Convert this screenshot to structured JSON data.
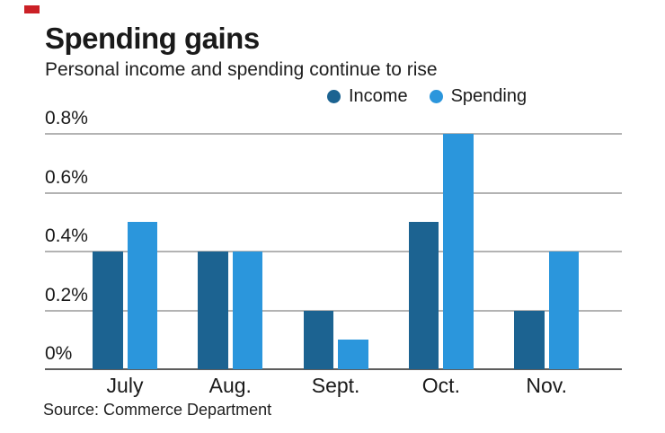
{
  "brand": {
    "accent_color": "#cb2026"
  },
  "header": {
    "title": "Spending gains",
    "subtitle": "Personal income and spending continue to rise"
  },
  "legend": [
    {
      "label": "Income",
      "color": "#1c6391"
    },
    {
      "label": "Spending",
      "color": "#2b96dc"
    }
  ],
  "source": "Source: Commerce Department",
  "chart_data": {
    "type": "bar",
    "title": "Spending gains",
    "subtitle": "Personal income and spending continue to rise",
    "categories": [
      "July",
      "Aug.",
      "Sept.",
      "Oct.",
      "Nov."
    ],
    "series": [
      {
        "name": "Income",
        "color": "#1c6391",
        "values": [
          0.4,
          0.4,
          0.2,
          0.5,
          0.2
        ]
      },
      {
        "name": "Spending",
        "color": "#2b96dc",
        "values": [
          0.5,
          0.4,
          0.1,
          0.8,
          0.4
        ]
      }
    ],
    "xlabel": "",
    "ylabel": "",
    "unit": "percent (monthly change)",
    "ylim": [
      0,
      0.8
    ],
    "y_ticks": [
      "0.8%",
      "0.6%",
      "0.4%",
      "0.2%",
      "0%"
    ],
    "y_tick_values": [
      0.8,
      0.6,
      0.4,
      0.2,
      0
    ],
    "grid": "horizontal",
    "legend_position": "top-right",
    "source": "Source: Commerce Department",
    "colors": {
      "gridline": "#b3b3b3",
      "axis": "#5d5d5d",
      "text": "#1a1a1a"
    }
  }
}
